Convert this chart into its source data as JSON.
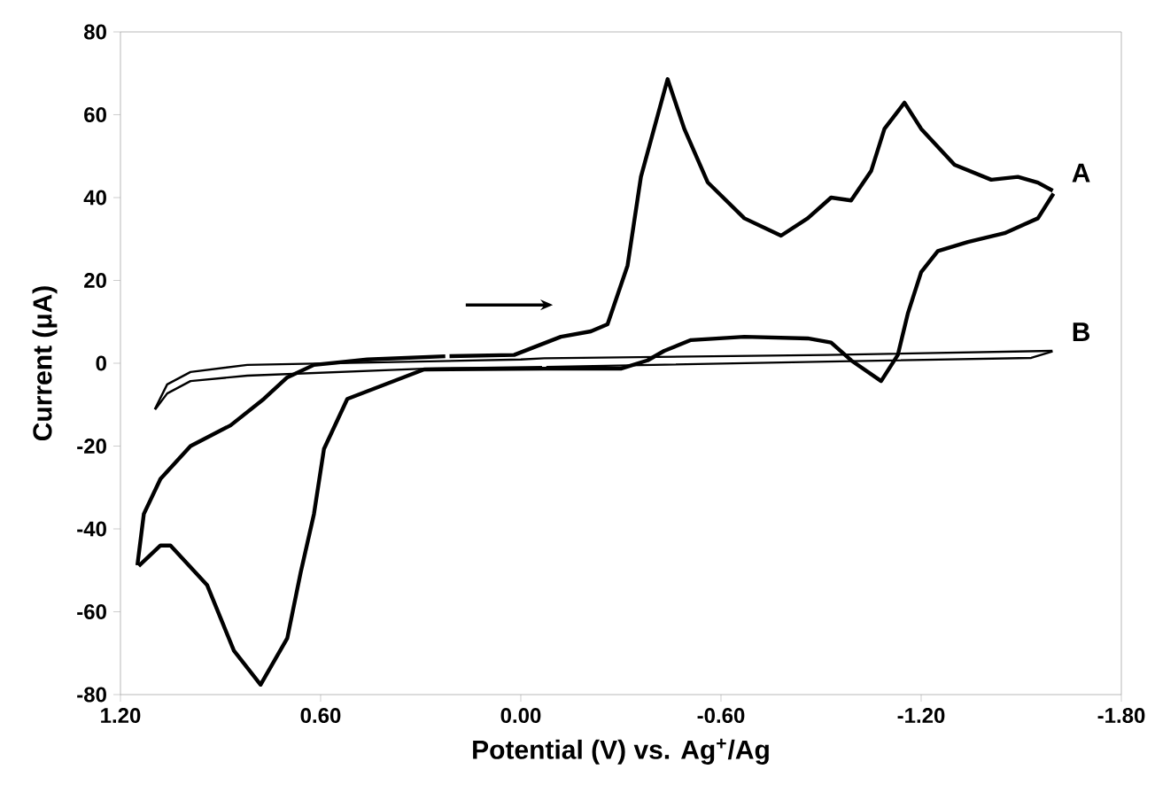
{
  "chart_data": {
    "type": "line",
    "xlabel": "Potential (V) vs. Ag$^{+}$/Ag",
    "ylabel": "Current (μA)",
    "xlim": [
      1.2,
      -1.8
    ],
    "ylim": [
      -80,
      80
    ],
    "xticks": [
      {
        "value": 1.2,
        "label": "1.20"
      },
      {
        "value": 0.6,
        "label": "0.60"
      },
      {
        "value": 0,
        "label": "0.00"
      },
      {
        "value": -0.6,
        "label": "-0.60"
      },
      {
        "value": -1.2,
        "label": "-1.20"
      },
      {
        "value": -1.8,
        "label": "-1.80"
      }
    ],
    "yticks": [
      -80,
      -60,
      -40,
      -20,
      0,
      20,
      40,
      60,
      80
    ],
    "grid": false,
    "legend": false,
    "marker": "none",
    "line_style": "solid",
    "series": [
      {
        "name": "A",
        "color": "#000000",
        "x": [
          0.22,
          0.02,
          -0.12,
          -0.21,
          -0.26,
          -0.32,
          -0.36,
          -0.44,
          -0.49,
          -0.56,
          -0.67,
          -0.78,
          -0.86,
          -0.93,
          -0.99,
          -1.05,
          -1.09,
          -1.15,
          -1.2,
          -1.3,
          -1.41,
          -1.49,
          -1.55,
          -1.6
        ],
        "values": [
          1.7,
          2,
          6.4,
          7.7,
          9.4,
          23.6,
          45,
          68.6,
          56.6,
          43.7,
          35,
          30.8,
          35,
          40,
          39.3,
          46.4,
          56.6,
          62.9,
          56.6,
          47.9,
          44.3,
          45,
          43.6,
          41.4
        ]
      },
      {
        "color": "#000000",
        "x": [
          -1.6,
          -1.55,
          -1.45,
          -1.34,
          -1.25,
          -1.2,
          -1.16,
          -1.13,
          -1.08,
          -0.99,
          -0.93,
          -0.86,
          -0.67,
          -0.51,
          -0.43,
          -0.38,
          -0.3,
          -0.07,
          0.29,
          0.52,
          0.59,
          0.62,
          0.66,
          0.7,
          0.78,
          0.86,
          0.94,
          1.05,
          1.08,
          1.15
        ],
        "values": [
          41.4,
          35,
          31.4,
          29.3,
          27.1,
          22,
          12,
          2,
          -4.3,
          0.7,
          5,
          6,
          6.4,
          5.6,
          3,
          0.7,
          -1.3,
          -1.3,
          -1.5,
          -8.6,
          -20.7,
          -36.4,
          -50.6,
          -66.4,
          -77.6,
          -69.4,
          -53.6,
          -44,
          -44,
          -49.3
        ]
      },
      {
        "color": "#000000",
        "x": [
          1.15,
          1.13,
          1.08,
          0.99,
          0.87,
          0.77,
          0.7,
          0.62,
          0.46,
          0.22
        ],
        "values": [
          -49.3,
          -36.4,
          -27.9,
          -20,
          -15,
          -8.6,
          -3.4,
          -0.4,
          0.9,
          1.7
        ]
      },
      {
        "name": "B",
        "color": "#000000",
        "x": [
          1.1,
          1.06,
          0.99,
          0.82,
          0,
          -0.07,
          -0.92,
          -1.6
        ],
        "values": [
          -11.6,
          -5.1,
          -2.1,
          -0.4,
          0.9,
          1.2,
          2,
          3
        ]
      },
      {
        "color": "#000000",
        "x": [
          -1.6,
          -1.53,
          -0.92,
          -0.07
        ],
        "values": [
          3,
          1.3,
          0.4,
          -0.9
        ]
      },
      {
        "color": "#000000",
        "x": [
          -0.07,
          0.29,
          0.82,
          0.99,
          1.06,
          1.1
        ],
        "values": [
          -0.9,
          -1.3,
          -3,
          -4.3,
          -7.3,
          -11.6
        ]
      }
    ]
  }
}
